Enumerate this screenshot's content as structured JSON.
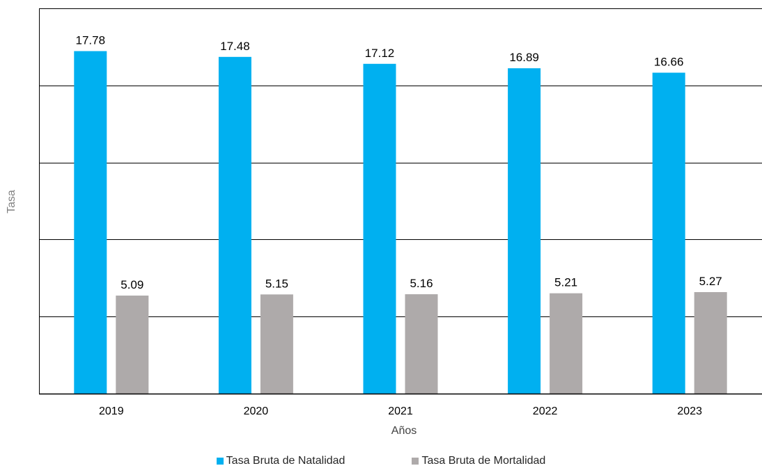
{
  "chart_data": {
    "type": "bar",
    "title": "",
    "xlabel": "Años",
    "ylabel": "Tasa",
    "categories": [
      "2019",
      "2020",
      "2021",
      "2022",
      "2023"
    ],
    "series": [
      {
        "name": "Tasa Bruta de Natalidad",
        "color": "#00B0F0",
        "values": [
          17.78,
          17.48,
          17.12,
          16.89,
          16.66
        ],
        "labels": [
          "17.78",
          "17.48",
          "17.12",
          "16.89",
          "16.66"
        ]
      },
      {
        "name": "Tasa Bruta de Mortalidad",
        "color": "#AEAAAA",
        "values": [
          5.09,
          5.15,
          5.16,
          5.21,
          5.27
        ],
        "labels": [
          "5.09",
          "5.15",
          "5.16",
          "5.21",
          "5.27"
        ]
      }
    ],
    "ylim": [
      0,
      20
    ],
    "y_gridline_step": 4,
    "grid": true,
    "y_tick_labels_shown": false,
    "legend_position": "bottom"
  }
}
